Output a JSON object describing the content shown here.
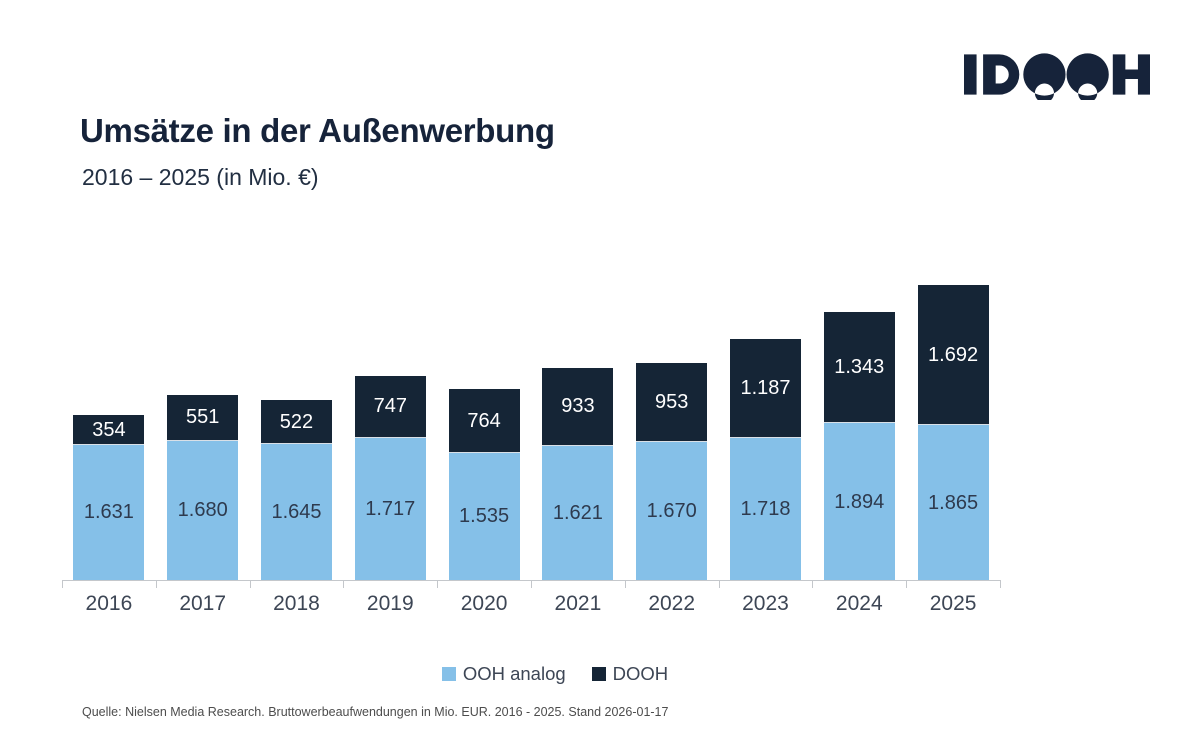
{
  "logo": {
    "text": "IDOOH"
  },
  "header": {
    "title": "Umsätze in der Außenwerbung",
    "subtitle": "2016 – 2025 (in Mio. €)"
  },
  "chart_data": {
    "type": "bar",
    "stacked": true,
    "title": "Umsätze in der Außenwerbung",
    "subtitle": "2016 – 2025 (in Mio. €)",
    "unit": "Mio. €",
    "categories": [
      "2016",
      "2017",
      "2018",
      "2019",
      "2020",
      "2021",
      "2022",
      "2023",
      "2024",
      "2025"
    ],
    "series": [
      {
        "name": "OOH analog",
        "color": "#85C0E8",
        "values": [
          1631,
          1680,
          1645,
          1717,
          1535,
          1621,
          1670,
          1718,
          1894,
          1865
        ],
        "labels": [
          "1.631",
          "1.680",
          "1.645",
          "1.717",
          "1.535",
          "1.621",
          "1.670",
          "1.718",
          "1.894",
          "1.865"
        ]
      },
      {
        "name": "DOOH",
        "color": "#152536",
        "values": [
          354,
          551,
          522,
          747,
          764,
          933,
          953,
          1187,
          1343,
          1692
        ],
        "labels": [
          "354",
          "551",
          "522",
          "747",
          "764",
          "933",
          "953",
          "1.187",
          "1.343",
          "1.692"
        ]
      }
    ],
    "legend_position": "bottom",
    "grid": false,
    "y_axis_visible": false,
    "value_labels": "inside"
  },
  "legend": {
    "items": [
      {
        "label": "OOH analog",
        "color": "#85C0E8"
      },
      {
        "label": "DOOH",
        "color": "#152536"
      }
    ]
  },
  "footer": {
    "source": "Quelle: Nielsen Media Research. Bruttowerbeaufwendungen in Mio. EUR. 2016 - 2025. Stand 2026-01-17"
  }
}
